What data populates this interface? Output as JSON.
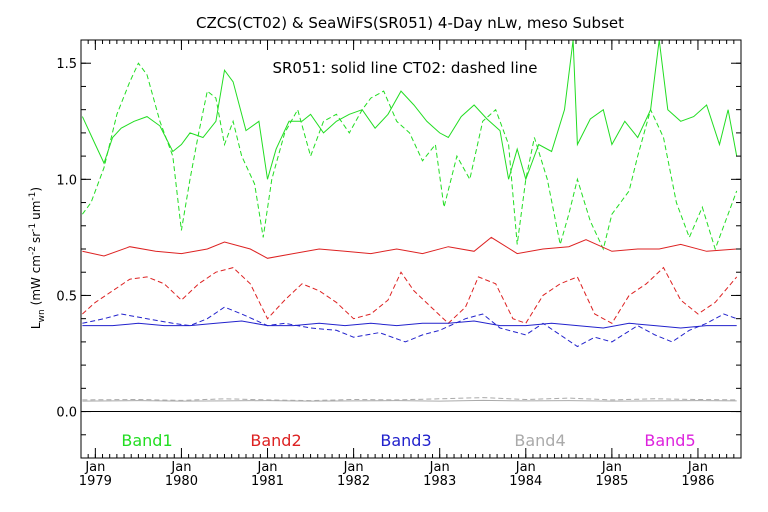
{
  "chart_data": {
    "type": "line",
    "title": "CZCS(CT02) & SeaWiFS(SR051) 4-Day nLw, meso Subset",
    "annotation": "SR051: solid line   CT02: dashed line",
    "xlabel": "",
    "ylabel_main": "L",
    "ylabel_sub": "wn",
    "ylabel_units_1": "(mW cm",
    "ylabel_units_2": "sr",
    "ylabel_units_3": "um",
    "ylabel_exp_neg2": "-2",
    "ylabel_exp_neg1": "-1",
    "ylabel_exp_neg1b": "-1",
    "ylabel_close": ")",
    "ylim": [
      -0.2,
      1.6
    ],
    "xlim": [
      "1978-11-01",
      "1986-07-01"
    ],
    "grid": false,
    "y_ticks": [
      {
        "value": 0.0,
        "label": "0.0"
      },
      {
        "value": 0.5,
        "label": "0.5"
      },
      {
        "value": 1.0,
        "label": "1.0"
      },
      {
        "value": 1.5,
        "label": "1.5"
      }
    ],
    "x_ticks": [
      {
        "month": "Jan",
        "year": "1979"
      },
      {
        "month": "Jan",
        "year": "1980"
      },
      {
        "month": "Jan",
        "year": "1981"
      },
      {
        "month": "Jan",
        "year": "1982"
      },
      {
        "month": "Jan",
        "year": "1983"
      },
      {
        "month": "Jan",
        "year": "1984"
      },
      {
        "month": "Jan",
        "year": "1985"
      },
      {
        "month": "Jan",
        "year": "1986"
      }
    ],
    "legend_placement": "bottom",
    "bands": [
      {
        "label": "Band1",
        "color": "#22dd22"
      },
      {
        "label": "Band2",
        "color": "#dd2222"
      },
      {
        "label": "Band3",
        "color": "#2222cc"
      },
      {
        "label": "Band4",
        "color": "#aaaaaa"
      },
      {
        "label": "Band5",
        "color": "#dd22dd"
      }
    ],
    "series": [
      {
        "band": "Band1",
        "style": "solid",
        "color": "#22dd22",
        "x": [
          1978.85,
          1979.0,
          1979.1,
          1979.2,
          1979.3,
          1979.45,
          1979.6,
          1979.75,
          1979.9,
          1980.0,
          1980.1,
          1980.25,
          1980.4,
          1980.5,
          1980.6,
          1980.75,
          1980.9,
          1981.0,
          1981.1,
          1981.25,
          1981.4,
          1981.5,
          1981.65,
          1981.8,
          1981.95,
          1982.1,
          1982.25,
          1982.4,
          1982.55,
          1982.7,
          1982.85,
          1983.0,
          1983.1,
          1983.25,
          1983.4,
          1983.55,
          1983.7,
          1983.8,
          1983.9,
          1984.0,
          1984.15,
          1984.3,
          1984.45,
          1984.55,
          1984.6,
          1984.75,
          1984.9,
          1985.0,
          1985.15,
          1985.3,
          1985.45,
          1985.55,
          1985.65,
          1985.8,
          1985.95,
          1986.1,
          1986.25,
          1986.35,
          1986.45
        ],
        "y": [
          1.27,
          1.15,
          1.07,
          1.18,
          1.22,
          1.25,
          1.27,
          1.23,
          1.12,
          1.15,
          1.2,
          1.18,
          1.25,
          1.47,
          1.42,
          1.21,
          1.25,
          1.0,
          1.13,
          1.25,
          1.25,
          1.28,
          1.2,
          1.25,
          1.28,
          1.3,
          1.22,
          1.28,
          1.38,
          1.32,
          1.25,
          1.2,
          1.18,
          1.27,
          1.32,
          1.26,
          1.21,
          1.0,
          1.13,
          1.0,
          1.15,
          1.12,
          1.3,
          1.6,
          1.15,
          1.26,
          1.3,
          1.15,
          1.25,
          1.18,
          1.3,
          1.6,
          1.3,
          1.25,
          1.27,
          1.32,
          1.15,
          1.3,
          1.1
        ]
      },
      {
        "band": "Band1",
        "style": "dashed",
        "color": "#22dd22",
        "x": [
          1978.85,
          1978.95,
          1979.1,
          1979.25,
          1979.4,
          1979.5,
          1979.6,
          1979.75,
          1979.9,
          1980.0,
          1980.1,
          1980.2,
          1980.3,
          1980.4,
          1980.5,
          1980.6,
          1980.7,
          1980.85,
          1980.95,
          1981.05,
          1981.2,
          1981.35,
          1981.5,
          1981.65,
          1981.8,
          1981.95,
          1982.1,
          1982.2,
          1982.35,
          1982.5,
          1982.65,
          1982.8,
          1982.95,
          1983.05,
          1983.2,
          1983.35,
          1983.5,
          1983.65,
          1983.8,
          1983.9,
          1984.0,
          1984.1,
          1984.25,
          1984.4,
          1984.5,
          1984.6,
          1984.75,
          1984.9,
          1985.0,
          1985.1,
          1985.2,
          1985.3,
          1985.45,
          1985.6,
          1985.75,
          1985.9,
          1986.05,
          1986.2,
          1986.35,
          1986.45
        ],
        "y": [
          0.85,
          0.9,
          1.05,
          1.28,
          1.42,
          1.5,
          1.45,
          1.25,
          1.1,
          0.78,
          1.0,
          1.2,
          1.38,
          1.35,
          1.15,
          1.25,
          1.1,
          0.98,
          0.75,
          1.0,
          1.2,
          1.3,
          1.1,
          1.25,
          1.28,
          1.2,
          1.3,
          1.35,
          1.38,
          1.25,
          1.2,
          1.08,
          1.15,
          0.88,
          1.1,
          1.0,
          1.25,
          1.3,
          1.15,
          0.72,
          1.0,
          1.18,
          1.0,
          0.72,
          0.85,
          1.0,
          0.82,
          0.7,
          0.85,
          0.9,
          0.95,
          1.1,
          1.3,
          1.18,
          0.9,
          0.75,
          0.88,
          0.7,
          0.85,
          0.95
        ]
      },
      {
        "band": "Band2",
        "style": "solid",
        "color": "#dd2222",
        "x": [
          1978.85,
          1979.1,
          1979.4,
          1979.7,
          1980.0,
          1980.3,
          1980.5,
          1980.8,
          1981.0,
          1981.3,
          1981.6,
          1981.9,
          1982.2,
          1982.5,
          1982.8,
          1983.1,
          1983.4,
          1983.6,
          1983.9,
          1984.2,
          1984.5,
          1984.7,
          1985.0,
          1985.3,
          1985.55,
          1985.8,
          1986.1,
          1986.45
        ],
        "y": [
          0.69,
          0.67,
          0.71,
          0.69,
          0.68,
          0.7,
          0.73,
          0.7,
          0.66,
          0.68,
          0.7,
          0.69,
          0.68,
          0.7,
          0.68,
          0.71,
          0.69,
          0.75,
          0.68,
          0.7,
          0.71,
          0.74,
          0.69,
          0.7,
          0.7,
          0.72,
          0.69,
          0.7
        ]
      },
      {
        "band": "Band2",
        "style": "dashed",
        "color": "#dd2222",
        "x": [
          1978.85,
          1979.0,
          1979.2,
          1979.4,
          1979.6,
          1979.8,
          1980.0,
          1980.2,
          1980.4,
          1980.6,
          1980.8,
          1981.0,
          1981.2,
          1981.4,
          1981.6,
          1981.8,
          1982.0,
          1982.2,
          1982.4,
          1982.55,
          1982.7,
          1982.9,
          1983.1,
          1983.3,
          1983.45,
          1983.65,
          1983.85,
          1984.0,
          1984.2,
          1984.4,
          1984.6,
          1984.8,
          1985.0,
          1985.2,
          1985.4,
          1985.6,
          1985.8,
          1986.0,
          1986.2,
          1986.45
        ],
        "y": [
          0.42,
          0.47,
          0.52,
          0.57,
          0.58,
          0.55,
          0.48,
          0.55,
          0.6,
          0.62,
          0.55,
          0.4,
          0.48,
          0.55,
          0.52,
          0.47,
          0.4,
          0.42,
          0.48,
          0.6,
          0.52,
          0.45,
          0.38,
          0.45,
          0.58,
          0.55,
          0.4,
          0.38,
          0.5,
          0.55,
          0.58,
          0.42,
          0.38,
          0.5,
          0.55,
          0.62,
          0.48,
          0.42,
          0.47,
          0.58
        ]
      },
      {
        "band": "Band3",
        "style": "solid",
        "color": "#2222cc",
        "x": [
          1978.85,
          1979.2,
          1979.5,
          1979.8,
          1980.1,
          1980.4,
          1980.7,
          1981.0,
          1981.3,
          1981.6,
          1981.9,
          1982.2,
          1982.5,
          1982.8,
          1983.1,
          1983.4,
          1983.7,
          1984.0,
          1984.3,
          1984.6,
          1984.9,
          1985.2,
          1985.5,
          1985.8,
          1986.1,
          1986.45
        ],
        "y": [
          0.37,
          0.37,
          0.38,
          0.37,
          0.37,
          0.38,
          0.39,
          0.37,
          0.37,
          0.38,
          0.37,
          0.38,
          0.37,
          0.38,
          0.38,
          0.39,
          0.37,
          0.37,
          0.38,
          0.37,
          0.36,
          0.38,
          0.37,
          0.36,
          0.37,
          0.37
        ]
      },
      {
        "band": "Band3",
        "style": "dashed",
        "color": "#2222cc",
        "x": [
          1978.85,
          1979.1,
          1979.3,
          1979.6,
          1979.9,
          1980.1,
          1980.3,
          1980.5,
          1980.7,
          1981.0,
          1981.2,
          1981.5,
          1981.8,
          1982.0,
          1982.3,
          1982.6,
          1982.8,
          1983.0,
          1983.3,
          1983.5,
          1983.7,
          1984.0,
          1984.2,
          1984.4,
          1984.6,
          1984.8,
          1985.0,
          1985.3,
          1985.5,
          1985.7,
          1985.9,
          1986.1,
          1986.3,
          1986.45
        ],
        "y": [
          0.38,
          0.4,
          0.42,
          0.4,
          0.38,
          0.37,
          0.4,
          0.45,
          0.42,
          0.37,
          0.38,
          0.36,
          0.35,
          0.32,
          0.34,
          0.3,
          0.33,
          0.35,
          0.4,
          0.42,
          0.36,
          0.33,
          0.38,
          0.33,
          0.28,
          0.32,
          0.3,
          0.37,
          0.33,
          0.3,
          0.35,
          0.38,
          0.42,
          0.4
        ]
      },
      {
        "band": "Band4",
        "style": "solid",
        "color": "#aaaaaa",
        "x": [
          1978.85,
          1979.5,
          1980.0,
          1980.5,
          1981.0,
          1981.5,
          1982.0,
          1982.5,
          1983.0,
          1983.5,
          1984.0,
          1984.5,
          1985.0,
          1985.5,
          1986.0,
          1986.45
        ],
        "y": [
          0.045,
          0.047,
          0.045,
          0.046,
          0.047,
          0.045,
          0.046,
          0.047,
          0.045,
          0.048,
          0.046,
          0.047,
          0.045,
          0.046,
          0.047,
          0.046
        ]
      },
      {
        "band": "Band4",
        "style": "dashed",
        "color": "#aaaaaa",
        "x": [
          1978.85,
          1979.5,
          1980.0,
          1980.5,
          1981.0,
          1981.5,
          1982.0,
          1982.5,
          1983.0,
          1983.5,
          1984.0,
          1984.5,
          1985.0,
          1985.5,
          1986.0,
          1986.45
        ],
        "y": [
          0.05,
          0.052,
          0.048,
          0.055,
          0.05,
          0.047,
          0.052,
          0.05,
          0.055,
          0.06,
          0.052,
          0.058,
          0.05,
          0.055,
          0.052,
          0.05
        ]
      }
    ],
    "reference_line": {
      "y": 0.0,
      "color": "#000000"
    }
  }
}
